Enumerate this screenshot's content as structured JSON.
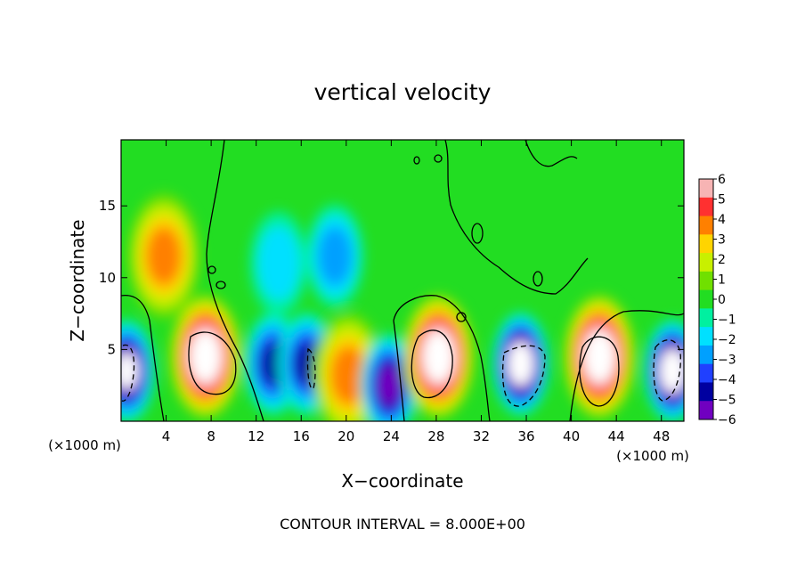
{
  "chart_data": {
    "type": "heatmap",
    "title": "vertical velocity",
    "xlabel": "X−coordinate",
    "ylabel": "Z−coordinate",
    "x_unit_label_left": "(×1000 m)",
    "x_unit_label_right": "(×1000 m)",
    "footer": "CONTOUR INTERVAL = 8.000E+00",
    "xlim": [
      0,
      50
    ],
    "ylim": [
      0,
      19.6
    ],
    "x_ticks": [
      4,
      8,
      12,
      16,
      20,
      24,
      28,
      32,
      36,
      40,
      44,
      48
    ],
    "y_ticks": [
      5,
      10,
      15
    ],
    "colorbar": {
      "min": -6,
      "max": 6,
      "labels": [
        "6",
        "5",
        "4",
        "3",
        "2",
        "1",
        "0",
        "−1",
        "−2",
        "−3",
        "−4",
        "−5",
        "−6"
      ],
      "colors": [
        "#f7b4b4",
        "#ff3030",
        "#ff8000",
        "#ffd400",
        "#c8f000",
        "#70e000",
        "#22dd22",
        "#00f0a0",
        "#00e0ff",
        "#00a0ff",
        "#2040ff",
        "#0000a0",
        "#7000c0"
      ]
    },
    "features": [
      {
        "kind": "downdraft",
        "x": 0.5,
        "z": 3.5,
        "value": -7
      },
      {
        "kind": "updraft",
        "x": 7.5,
        "z": 4.5,
        "value": 9
      },
      {
        "kind": "updraft",
        "x": 3.8,
        "z": 11.5,
        "value": 4
      },
      {
        "kind": "downdraft",
        "x": 13.5,
        "z": 4,
        "value": -5
      },
      {
        "kind": "downdraft",
        "x": 16.5,
        "z": 4,
        "value": -5
      },
      {
        "kind": "updraft",
        "x": 20.2,
        "z": 3.2,
        "value": 4
      },
      {
        "kind": "downdraft",
        "x": 23.8,
        "z": 2.5,
        "value": -6
      },
      {
        "kind": "updraft",
        "x": 28.2,
        "z": 4.5,
        "value": 9
      },
      {
        "kind": "downdraft",
        "x": 35.5,
        "z": 4,
        "value": -8
      },
      {
        "kind": "updraft",
        "x": 42.5,
        "z": 4.5,
        "value": 10
      },
      {
        "kind": "downdraft",
        "x": 49,
        "z": 3.5,
        "value": -8
      },
      {
        "kind": "downdraft",
        "x": 19,
        "z": 11.5,
        "value": -3
      },
      {
        "kind": "downdraft",
        "x": 14,
        "z": 11,
        "value": -2
      }
    ]
  }
}
